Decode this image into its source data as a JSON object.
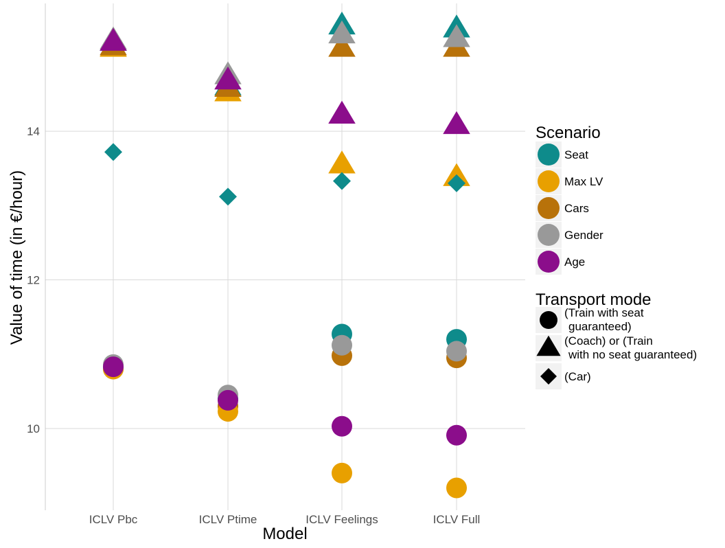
{
  "chart_data": {
    "type": "scatter",
    "xlabel": "Model",
    "ylabel": "Value of time (in €/hour)",
    "categories": [
      "ICLV Pbc",
      "ICLV Ptime",
      "ICLV Feelings",
      "ICLV Full"
    ],
    "yticks": [
      10,
      12,
      14
    ],
    "ylim": [
      8.9,
      15.72
    ],
    "grid": true,
    "legend_placement": "right",
    "legends": {
      "scenario": {
        "title": "Scenario",
        "items": [
          {
            "name": "Seat",
            "color": "#0e8b8b"
          },
          {
            "name": "Max LV",
            "color": "#e8a000"
          },
          {
            "name": "Cars",
            "color": "#b8720a"
          },
          {
            "name": "Gender",
            "color": "#999999"
          },
          {
            "name": "Age",
            "color": "#8b0d8b"
          }
        ]
      },
      "mode": {
        "title": "Transport mode",
        "items": [
          {
            "shape": "circle",
            "lines": [
              "(Train with seat",
              "guaranteed)"
            ]
          },
          {
            "shape": "triangle",
            "lines": [
              "(Coach) or (Train",
              "with no seat guaranteed)"
            ]
          },
          {
            "shape": "diamond",
            "lines": [
              "(Car)"
            ]
          }
        ]
      }
    },
    "series": [
      {
        "name": "Seat",
        "color": "#0e8b8b",
        "mode": "triangle",
        "values": [
          15.2,
          14.6,
          15.42,
          15.38
        ]
      },
      {
        "name": "Max LV",
        "color": "#e8a000",
        "mode": "triangle",
        "values": [
          15.12,
          14.52,
          13.55,
          13.38
        ]
      },
      {
        "name": "Cars",
        "color": "#b8720a",
        "mode": "triangle",
        "values": [
          15.14,
          14.58,
          15.12,
          15.12
        ]
      },
      {
        "name": "Gender",
        "color": "#999999",
        "mode": "triangle",
        "values": [
          15.22,
          14.75,
          15.3,
          15.25
        ]
      },
      {
        "name": "Age",
        "color": "#8b0d8b",
        "mode": "triangle",
        "values": [
          15.2,
          14.68,
          14.22,
          14.08
        ]
      },
      {
        "name": "Seat",
        "color": "#0e8b8b",
        "mode": "diamond",
        "values": [
          13.72,
          13.12,
          13.33,
          13.3
        ]
      },
      {
        "name": "Cars",
        "color": "#b8720a",
        "mode": "circle",
        "values": [
          10.8,
          10.3,
          10.98,
          10.95
        ]
      },
      {
        "name": "Max LV",
        "color": "#e8a000",
        "mode": "circle",
        "values": [
          10.8,
          10.23,
          9.4,
          9.2
        ]
      },
      {
        "name": "Seat",
        "color": "#0e8b8b",
        "mode": "circle",
        "values": [
          10.84,
          10.4,
          11.27,
          11.2
        ]
      },
      {
        "name": "Gender",
        "color": "#999999",
        "mode": "circle",
        "values": [
          10.86,
          10.45,
          11.12,
          11.04
        ]
      },
      {
        "name": "Age",
        "color": "#8b0d8b",
        "mode": "circle",
        "values": [
          10.83,
          10.38,
          10.03,
          9.91
        ]
      }
    ]
  }
}
